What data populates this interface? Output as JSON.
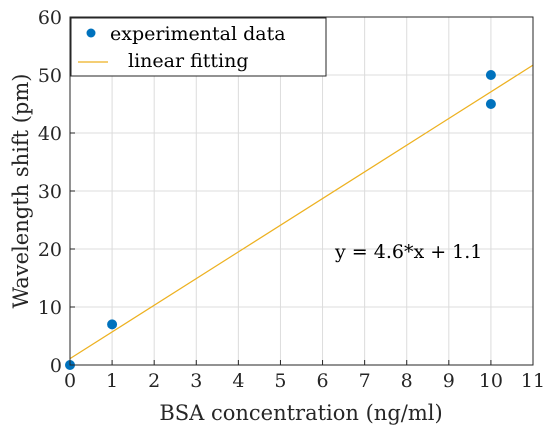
{
  "chart_data": {
    "type": "scatter",
    "xlabel": "BSA concentration (ng/ml)",
    "ylabel": "Wavelength shift (pm)",
    "xlim": [
      0,
      11
    ],
    "ylim": [
      0,
      60
    ],
    "xticks": [
      0,
      1,
      2,
      3,
      4,
      5,
      6,
      7,
      8,
      9,
      10,
      11
    ],
    "yticks": [
      0,
      10,
      20,
      30,
      40,
      50,
      60
    ],
    "grid": true,
    "legend_position": "top-left",
    "series": [
      {
        "name": "experimental data",
        "kind": "scatter",
        "color": "#0072BD",
        "x": [
          0,
          1,
          10,
          10
        ],
        "y": [
          0,
          7,
          50,
          45
        ]
      },
      {
        "name": "linear fitting",
        "kind": "line",
        "color": "#EDB120",
        "slope": 4.6,
        "intercept": 1.1
      }
    ],
    "annotation": "y = 4.6*x + 1.1"
  }
}
